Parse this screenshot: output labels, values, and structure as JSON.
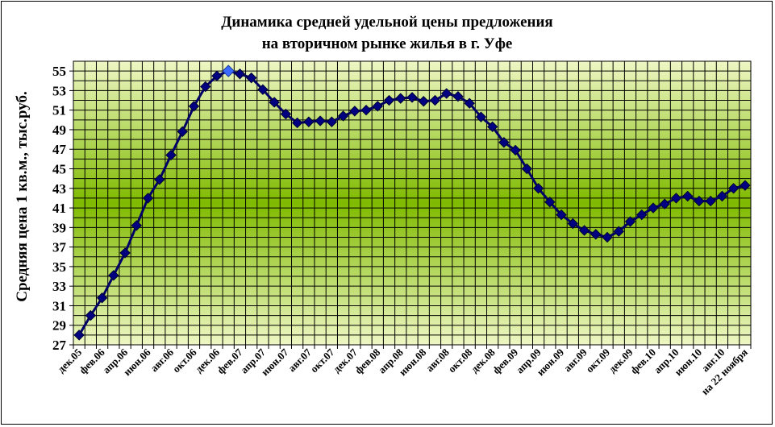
{
  "chart_data": {
    "type": "line",
    "title_line1": "Динамика средней удельной цены предложения",
    "title_line2": "на вторичном рынке жилья в г. Уфе",
    "ylabel": "Средняя цена 1 кв.м., тыс.руб.",
    "ylim": [
      27,
      56
    ],
    "y_ticks": [
      27,
      29,
      31,
      33,
      35,
      37,
      39,
      41,
      43,
      45,
      47,
      49,
      51,
      53,
      55
    ],
    "x_tick_labels": [
      "дек.05",
      "фев.06",
      "апр.06",
      "июн.06",
      "авг.06",
      "окт.06",
      "дек.06",
      "фев.07",
      "апр.07",
      "июн.07",
      "авг.07",
      "окт.07",
      "дек.07",
      "фев.08",
      "апр.08",
      "июн.08",
      "авг.08",
      "окт.08",
      "дек.08",
      "фев.09",
      "апр.09",
      "июн.09",
      "авг.09",
      "окт.09",
      "дек.09",
      "фев.10",
      "апр.10",
      "июн.10",
      "авг.10",
      "на 22 ноября"
    ],
    "grid": true,
    "highlight_index": 13,
    "colors": {
      "line": "#000066",
      "marker": "#000080",
      "highlight_marker": "#3c6cff",
      "bg_edge": "#eef7c4",
      "bg_center": "#7fba00"
    },
    "values": [
      28.0,
      30.0,
      31.8,
      34.1,
      36.4,
      39.2,
      42.0,
      43.9,
      46.4,
      48.8,
      51.4,
      53.4,
      54.5,
      55.0,
      54.7,
      54.3,
      53.1,
      51.8,
      50.6,
      49.7,
      49.8,
      49.9,
      49.8,
      50.4,
      50.9,
      51.0,
      51.4,
      52.0,
      52.2,
      52.3,
      51.9,
      52.0,
      52.7,
      52.4,
      51.7,
      50.3,
      49.3,
      47.7,
      46.9,
      45.0,
      43.0,
      41.6,
      40.3,
      39.4,
      38.7,
      38.3,
      38.0,
      38.6,
      39.6,
      40.3,
      41.0,
      41.4,
      42.0,
      42.2,
      41.7,
      41.7,
      42.2,
      43.0,
      43.3
    ]
  }
}
